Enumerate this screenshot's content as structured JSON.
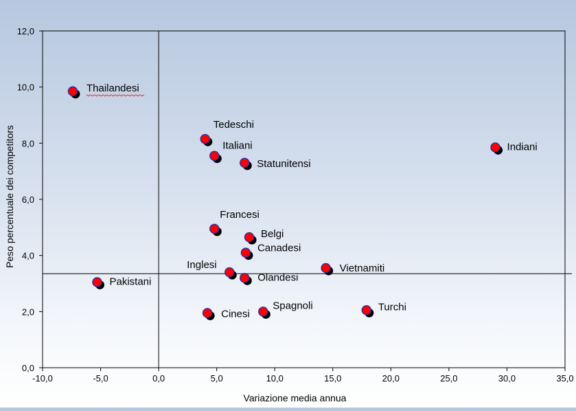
{
  "chart_data": {
    "type": "scatter",
    "xlabel": "Variazione media annua",
    "ylabel": "Peso percentuale dei competitors",
    "xlim": [
      -10,
      35
    ],
    "ylim": [
      0,
      12
    ],
    "x_ticks": [
      "-10,0",
      "-5,0",
      "0,0",
      "5,0",
      "10,0",
      "15,0",
      "20,0",
      "25,0",
      "30,0",
      "35,0"
    ],
    "y_ticks": [
      "0,0",
      "2,0",
      "4,0",
      "6,0",
      "8,0",
      "10,0",
      "12,0"
    ],
    "reference_lines": {
      "x": 0,
      "y": 3.35
    },
    "grid": false,
    "marker_color": "#ff0000",
    "marker_edge_color": "#2f2f9f",
    "shadow_color": "#000000",
    "points": [
      {
        "label": "Thailandesi",
        "x": -7.4,
        "y": 9.85
      },
      {
        "label": "Pakistani",
        "x": -5.3,
        "y": 3.05
      },
      {
        "label": "Tedeschi",
        "x": 4.0,
        "y": 8.15
      },
      {
        "label": "Italiani",
        "x": 4.8,
        "y": 7.55
      },
      {
        "label": "Statunitensi",
        "x": 7.4,
        "y": 7.3
      },
      {
        "label": "Indiani",
        "x": 29.0,
        "y": 7.85
      },
      {
        "label": "Francesi",
        "x": 4.8,
        "y": 4.95
      },
      {
        "label": "Belgi",
        "x": 7.8,
        "y": 4.65
      },
      {
        "label": "Canadesi",
        "x": 7.5,
        "y": 4.1
      },
      {
        "label": "Inglesi",
        "x": 6.1,
        "y": 3.4
      },
      {
        "label": "Olandesi",
        "x": 7.4,
        "y": 3.2
      },
      {
        "label": "Vietnamiti",
        "x": 14.4,
        "y": 3.55
      },
      {
        "label": "Cinesi",
        "x": 4.2,
        "y": 1.95
      },
      {
        "label": "Spagnoli",
        "x": 9.0,
        "y": 2.0
      },
      {
        "label": "Turchi",
        "x": 17.9,
        "y": 2.05
      }
    ]
  }
}
